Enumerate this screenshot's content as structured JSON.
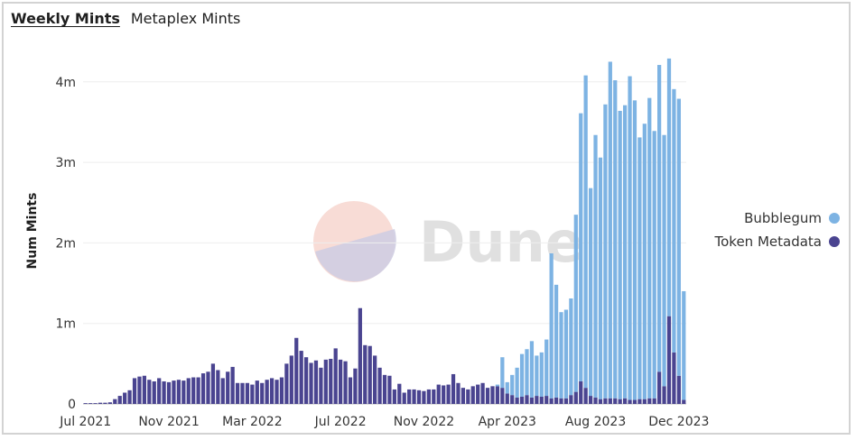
{
  "tabs": [
    {
      "label": "Weekly Mints",
      "active": true
    },
    {
      "label": "Metaplex Mints",
      "active": false
    }
  ],
  "watermark": "Dune",
  "chart_data": {
    "type": "bar",
    "stacked": true,
    "title": "",
    "xlabel": "",
    "ylabel": "Num Mints",
    "ylim": [
      0,
      4300000
    ],
    "y_ticks": [
      {
        "value": 0,
        "label": "0"
      },
      {
        "value": 1000000,
        "label": "1m"
      },
      {
        "value": 2000000,
        "label": "2m"
      },
      {
        "value": 3000000,
        "label": "3m"
      },
      {
        "value": 4000000,
        "label": "4m"
      }
    ],
    "x_ticks": [
      {
        "index": 0,
        "label": "Jul 2021"
      },
      {
        "index": 17,
        "label": "Nov 2021"
      },
      {
        "index": 34,
        "label": "Mar 2022"
      },
      {
        "index": 52,
        "label": "Jul 2022"
      },
      {
        "index": 69,
        "label": "Nov 2022"
      },
      {
        "index": 86,
        "label": "Apr 2023"
      },
      {
        "index": 104,
        "label": "Aug 2023"
      },
      {
        "index": 121,
        "label": "Dec 2023"
      }
    ],
    "grid": true,
    "legend_position": "right",
    "series": [
      {
        "name": "Bubblegum",
        "color": "#7db3e3",
        "values": [
          0,
          0,
          0,
          0,
          0,
          0,
          0,
          0,
          0,
          0,
          0,
          0,
          0,
          0,
          0,
          0,
          0,
          0,
          0,
          0,
          0,
          0,
          0,
          0,
          0,
          0,
          0,
          0,
          0,
          0,
          0,
          0,
          0,
          0,
          0,
          0,
          0,
          0,
          0,
          0,
          0,
          0,
          0,
          0,
          0,
          0,
          0,
          0,
          0,
          0,
          0,
          0,
          0,
          0,
          0,
          0,
          0,
          0,
          0,
          0,
          0,
          0,
          0,
          0,
          0,
          0,
          0,
          0,
          0,
          0,
          0,
          0,
          0,
          0,
          0,
          0,
          0,
          0,
          0,
          0,
          0,
          0,
          0,
          0,
          20000,
          380000,
          140000,
          250000,
          370000,
          530000,
          570000,
          700000,
          500000,
          550000,
          700000,
          1800000,
          1400000,
          1070000,
          1100000,
          1200000,
          2200000,
          3330000,
          3880000,
          2580000,
          3260000,
          3000000,
          3650000,
          4180000,
          3950000,
          3580000,
          3640000,
          4020000,
          3720000,
          3250000,
          3420000,
          3730000,
          3320000,
          3810000,
          3120000,
          3200000,
          3270000,
          3440000,
          1350000
        ]
      },
      {
        "name": "Token Metadata",
        "color": "#4a4490",
        "values": [
          10000,
          10000,
          10000,
          15000,
          15000,
          20000,
          60000,
          100000,
          140000,
          170000,
          320000,
          340000,
          350000,
          300000,
          280000,
          320000,
          280000,
          270000,
          290000,
          300000,
          290000,
          320000,
          330000,
          330000,
          380000,
          400000,
          500000,
          420000,
          320000,
          400000,
          460000,
          260000,
          260000,
          260000,
          240000,
          290000,
          260000,
          300000,
          320000,
          300000,
          330000,
          500000,
          600000,
          820000,
          660000,
          580000,
          510000,
          540000,
          450000,
          550000,
          560000,
          690000,
          550000,
          530000,
          330000,
          440000,
          1190000,
          730000,
          720000,
          600000,
          450000,
          360000,
          350000,
          180000,
          250000,
          140000,
          180000,
          180000,
          170000,
          160000,
          180000,
          180000,
          240000,
          230000,
          240000,
          370000,
          260000,
          200000,
          180000,
          220000,
          240000,
          260000,
          200000,
          220000,
          220000,
          200000,
          130000,
          110000,
          80000,
          90000,
          110000,
          80000,
          100000,
          90000,
          100000,
          70000,
          80000,
          70000,
          70000,
          110000,
          150000,
          280000,
          200000,
          100000,
          80000,
          60000,
          70000,
          70000,
          70000,
          60000,
          70000,
          50000,
          50000,
          60000,
          60000,
          70000,
          70000,
          400000,
          220000,
          1090000,
          640000,
          350000,
          50000
        ]
      }
    ]
  }
}
